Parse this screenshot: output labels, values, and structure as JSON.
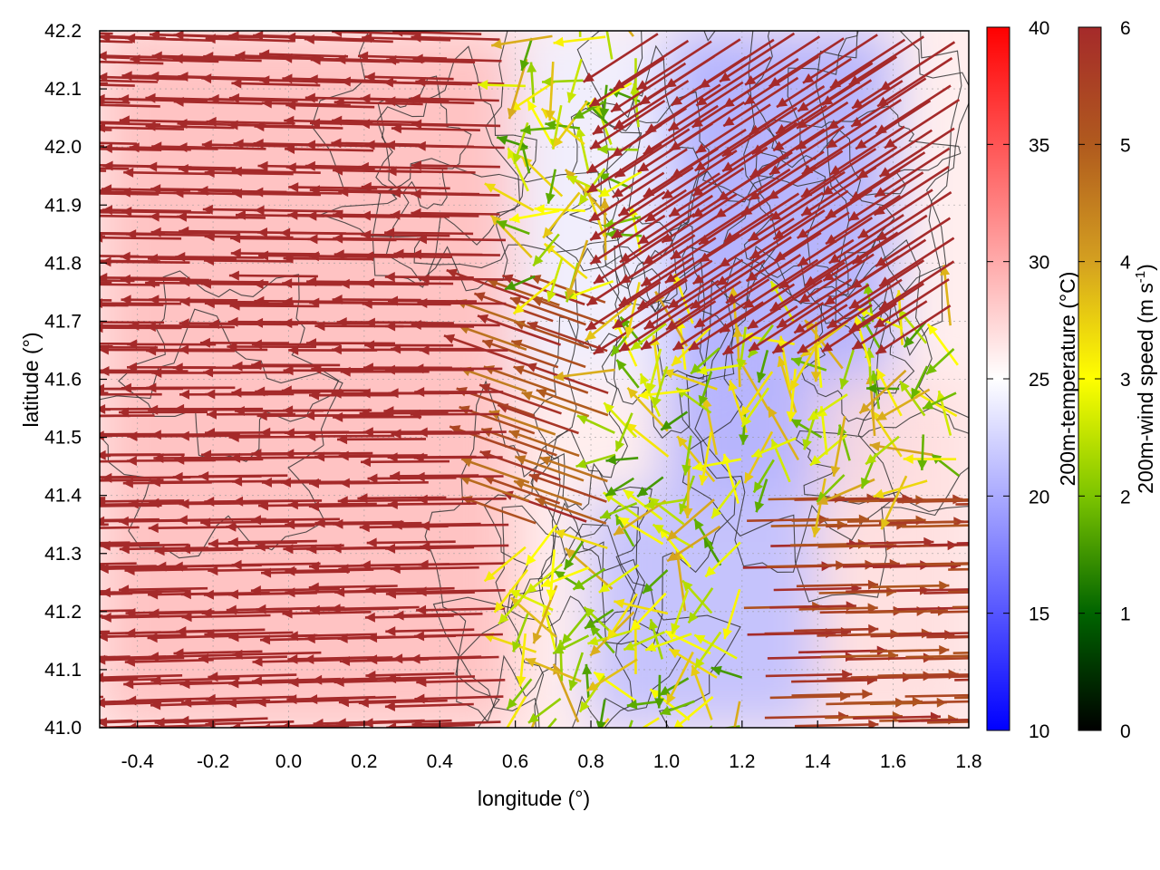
{
  "chart_data": {
    "type": "heatmap",
    "title": "",
    "xlabel": "longitude (°)",
    "ylabel": "latitude (°)",
    "xlim": [
      -0.5,
      1.8
    ],
    "ylim": [
      41.0,
      42.2
    ],
    "xticks": [
      "-0.4",
      "-0.2",
      "0.0",
      "0.2",
      "0.4",
      "0.6",
      "0.8",
      "1.0",
      "1.2",
      "1.4",
      "1.6",
      "1.8"
    ],
    "xtick_values": [
      -0.4,
      -0.2,
      0.0,
      0.2,
      0.4,
      0.6,
      0.8,
      1.0,
      1.2,
      1.4,
      1.6,
      1.8
    ],
    "yticks": [
      "41.0",
      "41.1",
      "41.2",
      "41.3",
      "41.4",
      "41.5",
      "41.6",
      "41.7",
      "41.8",
      "41.9",
      "42.0",
      "42.1",
      "42.2"
    ],
    "ytick_values": [
      41.0,
      41.1,
      41.2,
      41.3,
      41.4,
      41.5,
      41.6,
      41.7,
      41.8,
      41.9,
      42.0,
      42.1,
      42.2
    ],
    "grid": true,
    "temperature_colorbar": {
      "label": "200m-temperature (°C)",
      "range": [
        10,
        40
      ],
      "ticks": [
        "10",
        "15",
        "20",
        "25",
        "30",
        "35",
        "40"
      ],
      "tick_values": [
        10,
        15,
        20,
        25,
        30,
        35,
        40
      ],
      "colors": [
        "#0000ff",
        "#ffffff",
        "#ff0000"
      ]
    },
    "wind_colorbar": {
      "label": "200m-wind speed (m s",
      "label_sup": "-1",
      "label_close": ")",
      "range": [
        0,
        6
      ],
      "ticks": [
        "0",
        "1",
        "2",
        "3",
        "4",
        "5",
        "6"
      ],
      "tick_values": [
        0,
        1,
        2,
        3,
        4,
        5,
        6
      ],
      "colors": [
        "#000000",
        "#006400",
        "#7cc400",
        "#ffff00",
        "#d4a020",
        "#b05a1e",
        "#a52a2a"
      ]
    },
    "temperature_regions": [
      {
        "lon_range": [
          -0.5,
          0.6
        ],
        "lat_range": [
          41.0,
          42.2
        ],
        "temp_c": 29
      },
      {
        "lon_range": [
          0.6,
          1.2
        ],
        "lat_range": [
          41.6,
          42.2
        ],
        "temp_c": 24
      },
      {
        "lon_range": [
          1.0,
          1.6
        ],
        "lat_range": [
          41.4,
          42.2
        ],
        "temp_c": 20
      },
      {
        "lon_range": [
          0.8,
          1.4
        ],
        "lat_range": [
          41.0,
          41.4
        ],
        "temp_c": 21
      },
      {
        "lon_range": [
          1.4,
          1.8
        ],
        "lat_range": [
          41.0,
          41.6
        ],
        "temp_c": 27
      }
    ],
    "wind_field_summary": [
      {
        "region": "west, lon -0.5 to 0.6",
        "direction": "westward",
        "speed_ms": 6
      },
      {
        "region": "north-east, lon 1.0 to 1.8, lat 41.7 to 42.2",
        "direction": "south-westward",
        "speed_ms": 6
      },
      {
        "region": "centre, lon 0.8 to 1.4, lat 41.2 to 41.7",
        "direction": "variable",
        "speed_ms": 2.5
      },
      {
        "region": "south-east, lon 1.2 to 1.8, lat 41.0 to 41.4",
        "direction": "eastward",
        "speed_ms": 5
      }
    ]
  }
}
